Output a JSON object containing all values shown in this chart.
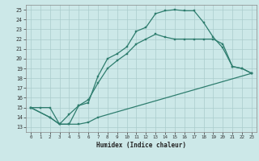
{
  "xlabel": "Humidex (Indice chaleur)",
  "bg_color": "#cce8e8",
  "grid_color": "#aacccc",
  "line_color": "#2e7d6e",
  "xlim": [
    -0.5,
    23.5
  ],
  "ylim": [
    12.5,
    25.5
  ],
  "xticks": [
    0,
    1,
    2,
    3,
    4,
    5,
    6,
    7,
    8,
    9,
    10,
    11,
    12,
    13,
    14,
    15,
    16,
    17,
    18,
    19,
    20,
    21,
    22,
    23
  ],
  "yticks": [
    13,
    14,
    15,
    16,
    17,
    18,
    19,
    20,
    21,
    22,
    23,
    24,
    25
  ],
  "line1_x": [
    0,
    1,
    2,
    3,
    4,
    5,
    6,
    7,
    8,
    9,
    10,
    11,
    12,
    13,
    14,
    15,
    16,
    17,
    18,
    19,
    20,
    21,
    22,
    23
  ],
  "line1_y": [
    15,
    15,
    15,
    13.3,
    13.3,
    15.2,
    15.5,
    18.2,
    20.0,
    20.5,
    21.2,
    22.8,
    23.2,
    24.6,
    24.9,
    25.0,
    24.9,
    24.9,
    23.7,
    22.2,
    21.1,
    19.2,
    19.0,
    18.5
  ],
  "line2_x": [
    0,
    2,
    3,
    4,
    5,
    6,
    7,
    8,
    9,
    10,
    11,
    12,
    13,
    14,
    15,
    16,
    17,
    18,
    19,
    20,
    21,
    22,
    23
  ],
  "line2_y": [
    15,
    14.0,
    13.3,
    14.3,
    15.2,
    15.8,
    17.5,
    19.0,
    19.8,
    20.5,
    21.5,
    22.0,
    22.5,
    22.2,
    22.0,
    22.0,
    22.0,
    22.0,
    22.0,
    21.5,
    19.2,
    19.0,
    18.5
  ],
  "line3_x": [
    0,
    2,
    3,
    4,
    5,
    6,
    7,
    23
  ],
  "line3_y": [
    15,
    14.0,
    13.3,
    13.3,
    13.3,
    13.5,
    14.0,
    18.5
  ]
}
